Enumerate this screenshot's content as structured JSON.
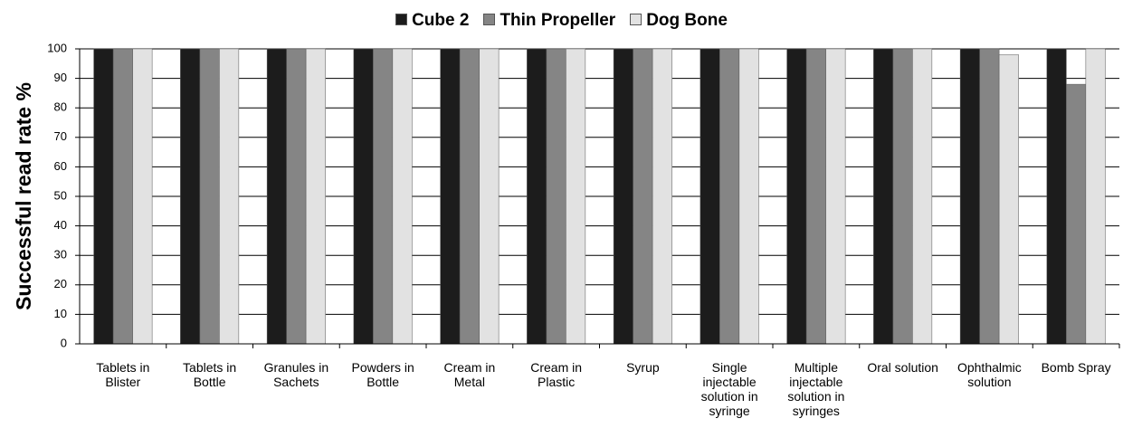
{
  "chart_data": {
    "type": "bar",
    "ylabel": "Successful read rate %",
    "categories": [
      "Tablets in Blister",
      "Tablets in Bottle",
      "Granules in Sachets",
      "Powders in Bottle",
      "Cream in Metal",
      "Cream in Plastic",
      "Syrup",
      "Single injectable solution in syringe",
      "Multiple injectable solution in syringes",
      "Oral solution",
      "Ophthalmic solution",
      "Bomb Spray"
    ],
    "series": [
      {
        "name": "Cube 2",
        "color": "#1c1c1c",
        "values": [
          100,
          100,
          100,
          100,
          100,
          100,
          100,
          100,
          100,
          100,
          100,
          100
        ]
      },
      {
        "name": "Thin Propeller",
        "color": "#858585",
        "values": [
          100,
          100,
          100,
          100,
          100,
          100,
          100,
          100,
          100,
          100,
          100,
          88
        ]
      },
      {
        "name": "Dog Bone",
        "color": "#e2e2e2",
        "values": [
          100,
          100,
          100,
          100,
          100,
          100,
          100,
          100,
          100,
          100,
          98,
          100
        ]
      }
    ],
    "ylim": [
      0,
      100
    ],
    "yticks": [
      0,
      10,
      20,
      30,
      40,
      50,
      60,
      70,
      80,
      90,
      100
    ],
    "grid": true,
    "legend": "top"
  }
}
